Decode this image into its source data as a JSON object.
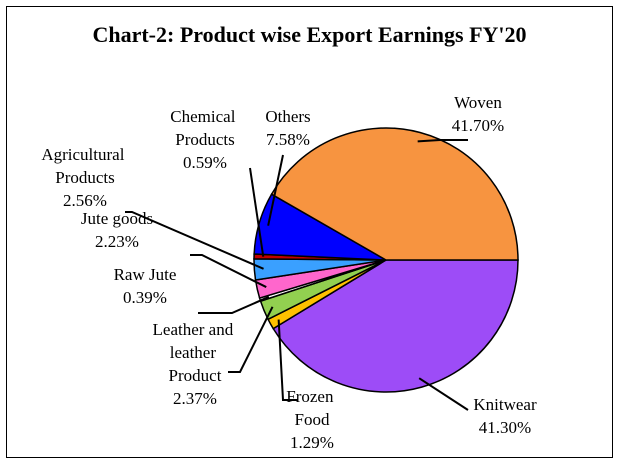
{
  "chart_data": {
    "type": "pie",
    "title": "Chart-2: Product wise Export Earnings FY'20",
    "categories": [
      "Knitwear",
      "Frozen Food",
      "Leather and leather Product",
      "Raw Jute",
      "Jute goods",
      "Agricultural Products",
      "Chemical Products",
      "Others",
      "Woven"
    ],
    "values": [
      41.3,
      1.29,
      2.37,
      0.39,
      2.23,
      2.56,
      0.59,
      7.58,
      41.7
    ],
    "value_labels": [
      "41.30%",
      "1.29%",
      "2.37%",
      "0.39%",
      "2.23%",
      "2.56%",
      "0.59%",
      "7.58%",
      "41.70%"
    ],
    "colors": [
      "#9d4cf7",
      "#ffc000",
      "#92d050",
      "#ffffff",
      "#ff66cc",
      "#3aa0ff",
      "#c00000",
      "#0000ff",
      "#f79440"
    ]
  }
}
